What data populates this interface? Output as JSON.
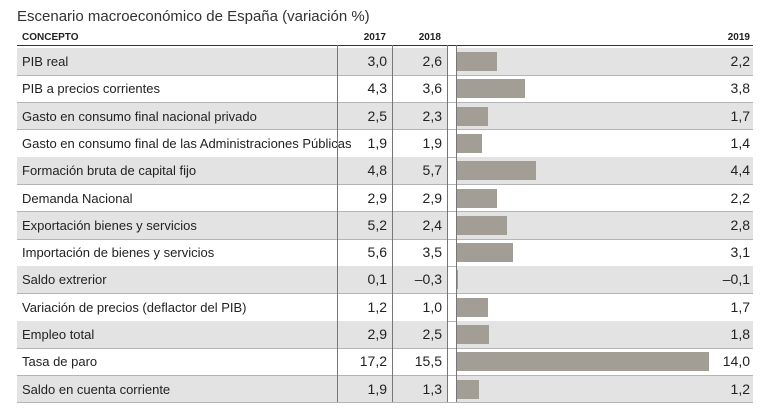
{
  "title": "Escenario macroeconómico de España (variación %)",
  "headers": {
    "concept": "CONCEPTO",
    "y2017": "2017",
    "y2018": "2018",
    "y2019": "2019"
  },
  "colors": {
    "bar": "#a29e96",
    "shade": "#e3e3e3"
  },
  "rows": [
    {
      "label": "PIB real",
      "v2017": "3,0",
      "v2018": "2,6",
      "v2019": "2,2"
    },
    {
      "label": "PIB a precios corrientes",
      "v2017": "4,3",
      "v2018": "3,6",
      "v2019": "3,8"
    },
    {
      "label": "Gasto en consumo final nacional privado",
      "v2017": "2,5",
      "v2018": "2,3",
      "v2019": "1,7"
    },
    {
      "label": "Gasto en consumo final de las Administraciones Públicas",
      "v2017": "1,9",
      "v2018": "1,9",
      "v2019": "1,4"
    },
    {
      "label": "Formación bruta de capital fijo",
      "v2017": "4,8",
      "v2018": "5,7",
      "v2019": "4,4"
    },
    {
      "label": "Demanda Nacional",
      "v2017": "2,9",
      "v2018": "2,9",
      "v2019": "2,2"
    },
    {
      "label": "Exportación bienes y servicios",
      "v2017": "5,2",
      "v2018": "2,4",
      "v2019": "2,8"
    },
    {
      "label": "Importación de bienes y servicios",
      "v2017": "5,6",
      "v2018": "3,5",
      "v2019": "3,1"
    },
    {
      "label": "Saldo extrerior",
      "v2017": "0,1",
      "v2018": "–0,3",
      "v2019": "–0,1"
    },
    {
      "label": "Variación de precios (deflactor del PIB)",
      "v2017": "1,2",
      "v2018": "1,0",
      "v2019": "1,7"
    },
    {
      "label": "Empleo total",
      "v2017": "2,9",
      "v2018": "2,5",
      "v2019": "1,8"
    },
    {
      "label": "Tasa de paro",
      "v2017": "17,2",
      "v2018": "15,5",
      "v2019": "14,0"
    },
    {
      "label": "Saldo en cuenta corriente",
      "v2017": "1,9",
      "v2018": "1,3",
      "v2019": "1,2"
    }
  ],
  "chart_data": {
    "type": "bar",
    "categories": [
      "PIB real",
      "PIB a precios corrientes",
      "Gasto en consumo final nacional privado",
      "Gasto en consumo final de las Administraciones Públicas",
      "Formación bruta de capital fijo",
      "Demanda Nacional",
      "Exportación bienes y servicios",
      "Importación de bienes y servicios",
      "Saldo extrerior",
      "Variación de precios (deflactor del PIB)",
      "Empleo total",
      "Tasa de paro",
      "Saldo en cuenta corriente"
    ],
    "series": [
      {
        "name": "2019",
        "values": [
          2.2,
          3.8,
          1.7,
          1.4,
          4.4,
          2.2,
          2.8,
          3.1,
          -0.1,
          1.7,
          1.8,
          14.0,
          1.2
        ]
      }
    ],
    "table_columns": [
      "CONCEPTO",
      "2017",
      "2018",
      "2019"
    ],
    "values_2017": [
      3.0,
      4.3,
      2.5,
      1.9,
      4.8,
      2.9,
      5.2,
      5.6,
      0.1,
      1.2,
      2.9,
      17.2,
      1.9
    ],
    "values_2018": [
      2.6,
      3.6,
      2.3,
      1.9,
      5.7,
      2.9,
      2.4,
      3.5,
      -0.3,
      1.0,
      2.5,
      15.5,
      1.3
    ],
    "orientation": "horizontal",
    "xlim": [
      -0.3,
      14.0
    ],
    "grid": false,
    "legend": "none",
    "title": "Escenario macroeconómico de España (variación %)"
  }
}
